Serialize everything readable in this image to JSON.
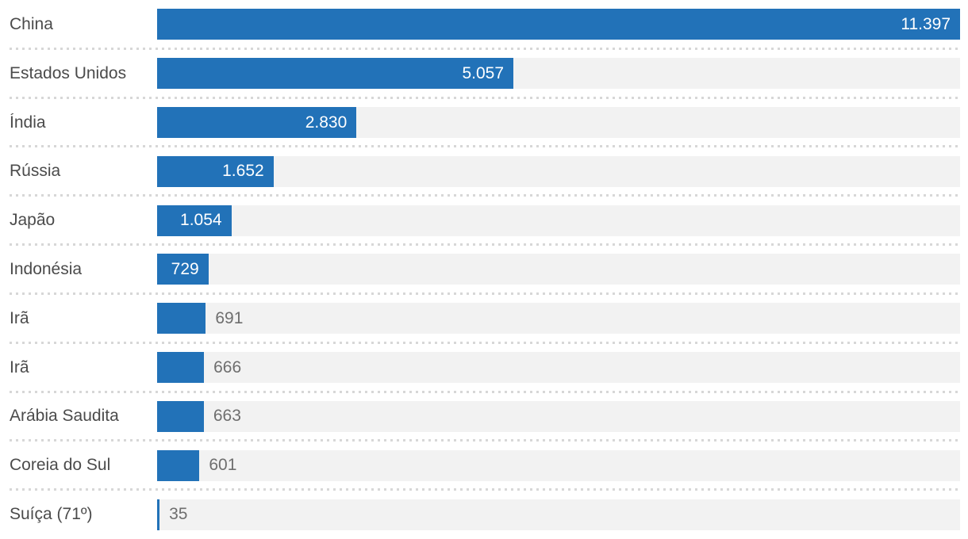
{
  "chart_data": {
    "type": "bar",
    "orientation": "horizontal",
    "title": "",
    "xlabel": "",
    "ylabel": "",
    "max_value": 11397,
    "grid": false,
    "legend": false,
    "bar_color": "#2272b8",
    "track_color": "#f2f2f2",
    "label_color": "#4b4b4b",
    "value_inside_color": "#ffffff",
    "value_outside_color": "#6e6e6e",
    "separator_color": "#d7d7d7",
    "categories": [
      "China",
      "Estados Unidos",
      "Índia",
      "Rússia",
      "Japão",
      "Indonésia",
      "Irã",
      "Irã",
      "Arábia Saudita",
      "Coreia do Sul",
      "Suíça (71º)"
    ],
    "values": [
      11397,
      5057,
      2830,
      1652,
      1054,
      729,
      691,
      666,
      663,
      601,
      35
    ],
    "rows": [
      {
        "label": "China",
        "value": 11397,
        "value_label": "11.397",
        "value_inside": true
      },
      {
        "label": "Estados Unidos",
        "value": 5057,
        "value_label": "5.057",
        "value_inside": true
      },
      {
        "label": "Índia",
        "value": 2830,
        "value_label": "2.830",
        "value_inside": true
      },
      {
        "label": "Rússia",
        "value": 1652,
        "value_label": "1.652",
        "value_inside": true
      },
      {
        "label": "Japão",
        "value": 1054,
        "value_label": "1.054",
        "value_inside": true
      },
      {
        "label": "Indonésia",
        "value": 729,
        "value_label": "729",
        "value_inside": true
      },
      {
        "label": "Irã",
        "value": 691,
        "value_label": "691",
        "value_inside": false
      },
      {
        "label": "Irã",
        "value": 666,
        "value_label": "666",
        "value_inside": false
      },
      {
        "label": "Arábia Saudita",
        "value": 663,
        "value_label": "663",
        "value_inside": false
      },
      {
        "label": "Coreia do Sul",
        "value": 601,
        "value_label": "601",
        "value_inside": false
      },
      {
        "label": "Suíça (71º)",
        "value": 35,
        "value_label": "35",
        "value_inside": false
      }
    ]
  }
}
